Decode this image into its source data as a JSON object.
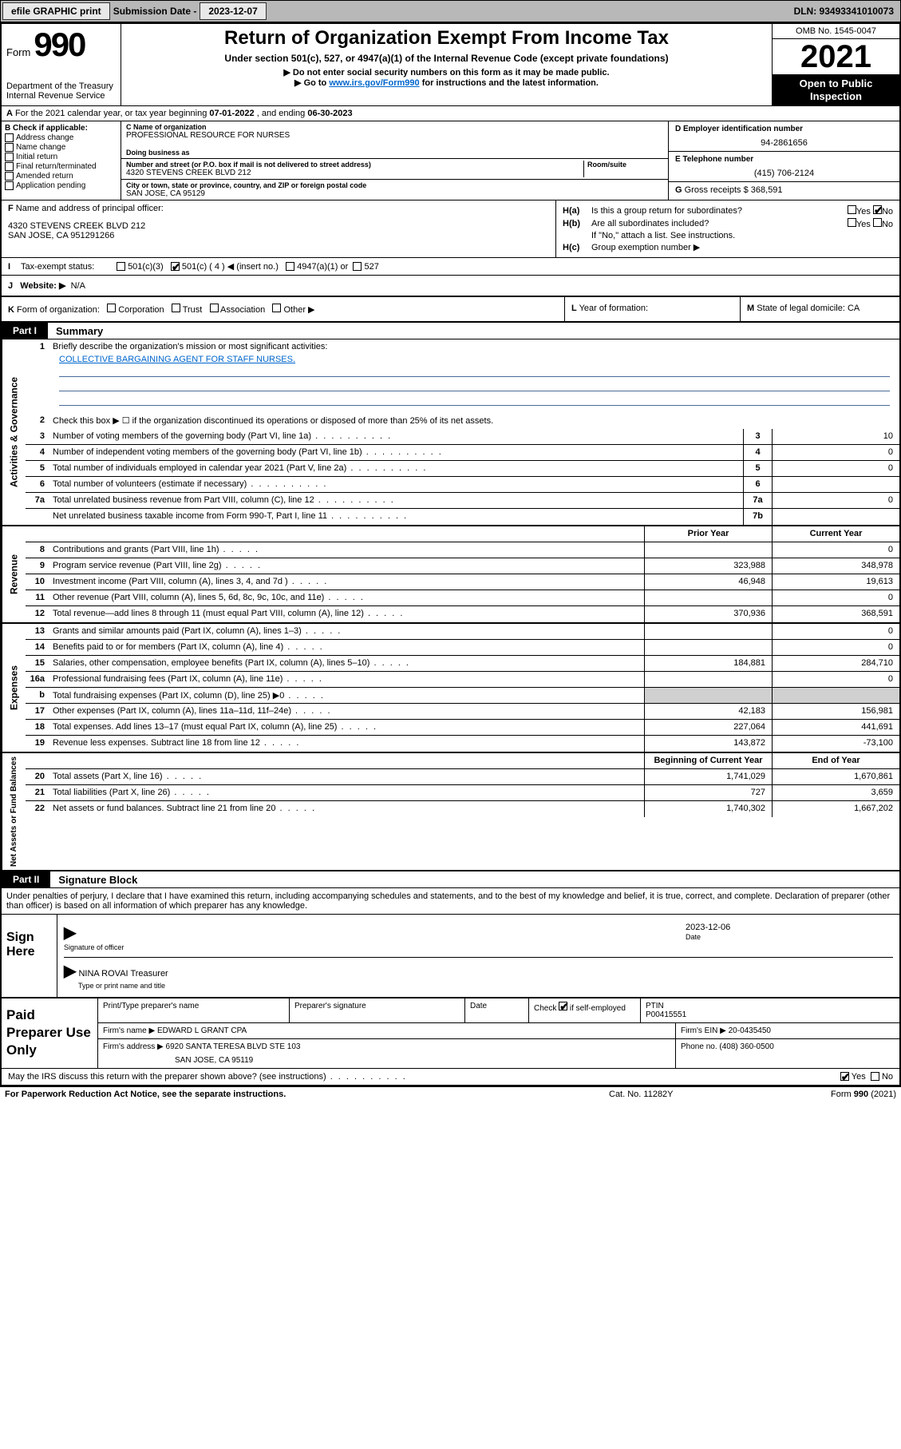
{
  "top_bar": {
    "efile": "efile GRAPHIC print",
    "sub_label": "Submission Date - ",
    "sub_date": "2023-12-07",
    "dln": "DLN: 93493341010073"
  },
  "header": {
    "form_word": "Form",
    "form_num": "990",
    "dept": "Department of the Treasury Internal Revenue Service",
    "title": "Return of Organization Exempt From Income Tax",
    "sub1": "Under section 501(c), 527, or 4947(a)(1) of the Internal Revenue Code (except private foundations)",
    "sub2": "Do not enter social security numbers on this form as it may be made public.",
    "sub3_pre": "Go to ",
    "sub3_link": "www.irs.gov/Form990",
    "sub3_post": " for instructions and the latest information.",
    "omb": "OMB No. 1545-0047",
    "year": "2021",
    "inspect": "Open to Public Inspection"
  },
  "row_a": {
    "label": "A",
    "text_pre": "For the 2021 calendar year, or tax year beginning ",
    "begin": "07-01-2022",
    "mid": " , and ending ",
    "end": "06-30-2023"
  },
  "col_b": {
    "label": "B",
    "hdr": "Check if applicable:",
    "items": [
      "Address change",
      "Name change",
      "Initial return",
      "Final return/terminated",
      "Amended return",
      "Application pending"
    ]
  },
  "col_c": {
    "name_label": "C Name of organization",
    "name": "PROFESSIONAL RESOURCE FOR NURSES",
    "dba_label": "Doing business as",
    "dba": "",
    "street_label": "Number and street (or P.O. box if mail is not delivered to street address)",
    "room_label": "Room/suite",
    "street": "4320 STEVENS CREEK BLVD 212",
    "city_label": "City or town, state or province, country, and ZIP or foreign postal code",
    "city": "SAN JOSE, CA  95129"
  },
  "col_de": {
    "d_label": "D Employer identification number",
    "d_val": "94-2861656",
    "e_label": "E Telephone number",
    "e_val": "(415) 706-2124",
    "g_label": "G",
    "g_text": "Gross receipts $",
    "g_val": "368,591"
  },
  "col_f": {
    "label": "F",
    "text": "Name and address of principal officer:",
    "addr1": "4320 STEVENS CREEK BLVD 212",
    "addr2": "SAN JOSE, CA  951291266"
  },
  "col_h": {
    "ha_label": "H(a)",
    "ha_text": "Is this a group return for subordinates?",
    "hb_label": "H(b)",
    "hb_text": "Are all subordinates included?",
    "hb_note": "If \"No,\" attach a list. See instructions.",
    "hc_label": "H(c)",
    "hc_text": "Group exemption number ▶",
    "yes": "Yes",
    "no": "No"
  },
  "row_i": {
    "label": "I",
    "text": "Tax-exempt status:",
    "opt1": "501(c)(3)",
    "opt2": "501(c) ( 4 ) ◀ (insert no.)",
    "opt3": "4947(a)(1) or",
    "opt4": "527"
  },
  "row_j": {
    "label": "J",
    "text": "Website: ▶",
    "val": "N/A"
  },
  "row_k": {
    "k_label": "K",
    "k_text": "Form of organization:",
    "opts": [
      "Corporation",
      "Trust",
      "Association",
      "Other ▶"
    ],
    "l_label": "L",
    "l_text": "Year of formation:",
    "m_label": "M",
    "m_text": "State of legal domicile:",
    "m_val": "CA"
  },
  "parts": {
    "p1": "Part I",
    "p1_title": "Summary",
    "p2": "Part II",
    "p2_title": "Signature Block"
  },
  "sections": {
    "gov": "Activities & Governance",
    "rev": "Revenue",
    "exp": "Expenses",
    "net": "Net Assets or Fund Balances"
  },
  "q1": {
    "num": "1",
    "text": "Briefly describe the organization's mission or most significant activities:",
    "mission": "COLLECTIVE BARGAINING AGENT FOR STAFF NURSES."
  },
  "q2": {
    "num": "2",
    "text": "Check this box ▶ ☐  if the organization discontinued its operations or disposed of more than 25% of its net assets."
  },
  "gov_rows": [
    {
      "n": "3",
      "d": "Number of voting members of the governing body (Part VI, line 1a)",
      "b": "3",
      "v": "10"
    },
    {
      "n": "4",
      "d": "Number of independent voting members of the governing body (Part VI, line 1b)",
      "b": "4",
      "v": "0"
    },
    {
      "n": "5",
      "d": "Total number of individuals employed in calendar year 2021 (Part V, line 2a)",
      "b": "5",
      "v": "0"
    },
    {
      "n": "6",
      "d": "Total number of volunteers (estimate if necessary)",
      "b": "6",
      "v": ""
    },
    {
      "n": "7a",
      "d": "Total unrelated business revenue from Part VIII, column (C), line 12",
      "b": "7a",
      "v": "0"
    },
    {
      "n": "",
      "d": "Net unrelated business taxable income from Form 990-T, Part I, line 11",
      "b": "7b",
      "v": ""
    }
  ],
  "col_headers": {
    "prior": "Prior Year",
    "current": "Current Year",
    "boc": "Beginning of Current Year",
    "eoy": "End of Year"
  },
  "rev_rows": [
    {
      "n": "8",
      "d": "Contributions and grants (Part VIII, line 1h)",
      "p": "",
      "c": "0"
    },
    {
      "n": "9",
      "d": "Program service revenue (Part VIII, line 2g)",
      "p": "323,988",
      "c": "348,978"
    },
    {
      "n": "10",
      "d": "Investment income (Part VIII, column (A), lines 3, 4, and 7d )",
      "p": "46,948",
      "c": "19,613"
    },
    {
      "n": "11",
      "d": "Other revenue (Part VIII, column (A), lines 5, 6d, 8c, 9c, 10c, and 11e)",
      "p": "",
      "c": "0"
    },
    {
      "n": "12",
      "d": "Total revenue—add lines 8 through 11 (must equal Part VIII, column (A), line 12)",
      "p": "370,936",
      "c": "368,591"
    }
  ],
  "exp_rows": [
    {
      "n": "13",
      "d": "Grants and similar amounts paid (Part IX, column (A), lines 1–3)",
      "p": "",
      "c": "0"
    },
    {
      "n": "14",
      "d": "Benefits paid to or for members (Part IX, column (A), line 4)",
      "p": "",
      "c": "0"
    },
    {
      "n": "15",
      "d": "Salaries, other compensation, employee benefits (Part IX, column (A), lines 5–10)",
      "p": "184,881",
      "c": "284,710"
    },
    {
      "n": "16a",
      "d": "Professional fundraising fees (Part IX, column (A), line 11e)",
      "p": "",
      "c": "0"
    },
    {
      "n": "b",
      "d": "Total fundraising expenses (Part IX, column (D), line 25) ▶0",
      "p": "GREY",
      "c": "GREY"
    },
    {
      "n": "17",
      "d": "Other expenses (Part IX, column (A), lines 11a–11d, 11f–24e)",
      "p": "42,183",
      "c": "156,981"
    },
    {
      "n": "18",
      "d": "Total expenses. Add lines 13–17 (must equal Part IX, column (A), line 25)",
      "p": "227,064",
      "c": "441,691"
    },
    {
      "n": "19",
      "d": "Revenue less expenses. Subtract line 18 from line 12",
      "p": "143,872",
      "c": "-73,100"
    }
  ],
  "net_rows": [
    {
      "n": "20",
      "d": "Total assets (Part X, line 16)",
      "p": "1,741,029",
      "c": "1,670,861"
    },
    {
      "n": "21",
      "d": "Total liabilities (Part X, line 26)",
      "p": "727",
      "c": "3,659"
    },
    {
      "n": "22",
      "d": "Net assets or fund balances. Subtract line 21 from line 20",
      "p": "1,740,302",
      "c": "1,667,202"
    }
  ],
  "sig": {
    "intro": "Under penalties of perjury, I declare that I have examined this return, including accompanying schedules and statements, and to the best of my knowledge and belief, it is true, correct, and complete. Declaration of preparer (other than officer) is based on all information of which preparer has any knowledge.",
    "sign_here": "Sign Here",
    "officer_label": "Signature of officer",
    "date_label": "Date",
    "date_val": "2023-12-06",
    "name": "NINA ROVAI  Treasurer",
    "name_label": "Type or print name and title"
  },
  "prep": {
    "title": "Paid Preparer Use Only",
    "h_name": "Print/Type preparer's name",
    "h_sig": "Preparer's signature",
    "h_date": "Date",
    "h_check": "Check ☑ if self-employed",
    "h_ptin": "PTIN",
    "ptin": "P00415551",
    "firm_label": "Firm's name    ▶",
    "firm": "EDWARD L GRANT CPA",
    "ein_label": "Firm's EIN ▶",
    "ein": "20-0435450",
    "addr_label": "Firm's address ▶",
    "addr1": "6920 SANTA TERESA BLVD STE 103",
    "addr2": "SAN JOSE, CA  95119",
    "phone_label": "Phone no.",
    "phone": "(408) 360-0500"
  },
  "discuss": {
    "text": "May the IRS discuss this return with the preparer shown above? (see instructions)",
    "yes": "Yes",
    "no": "No"
  },
  "footer": {
    "left": "For Paperwork Reduction Act Notice, see the separate instructions.",
    "mid": "Cat. No. 11282Y",
    "right_pre": "Form ",
    "right_b": "990",
    "right_post": " (2021)"
  },
  "colors": {
    "topbar_bg": "#b8b8b8",
    "link": "#0066cc",
    "rule": "#4a6a9a",
    "grey_cell": "#d0d0d0"
  }
}
